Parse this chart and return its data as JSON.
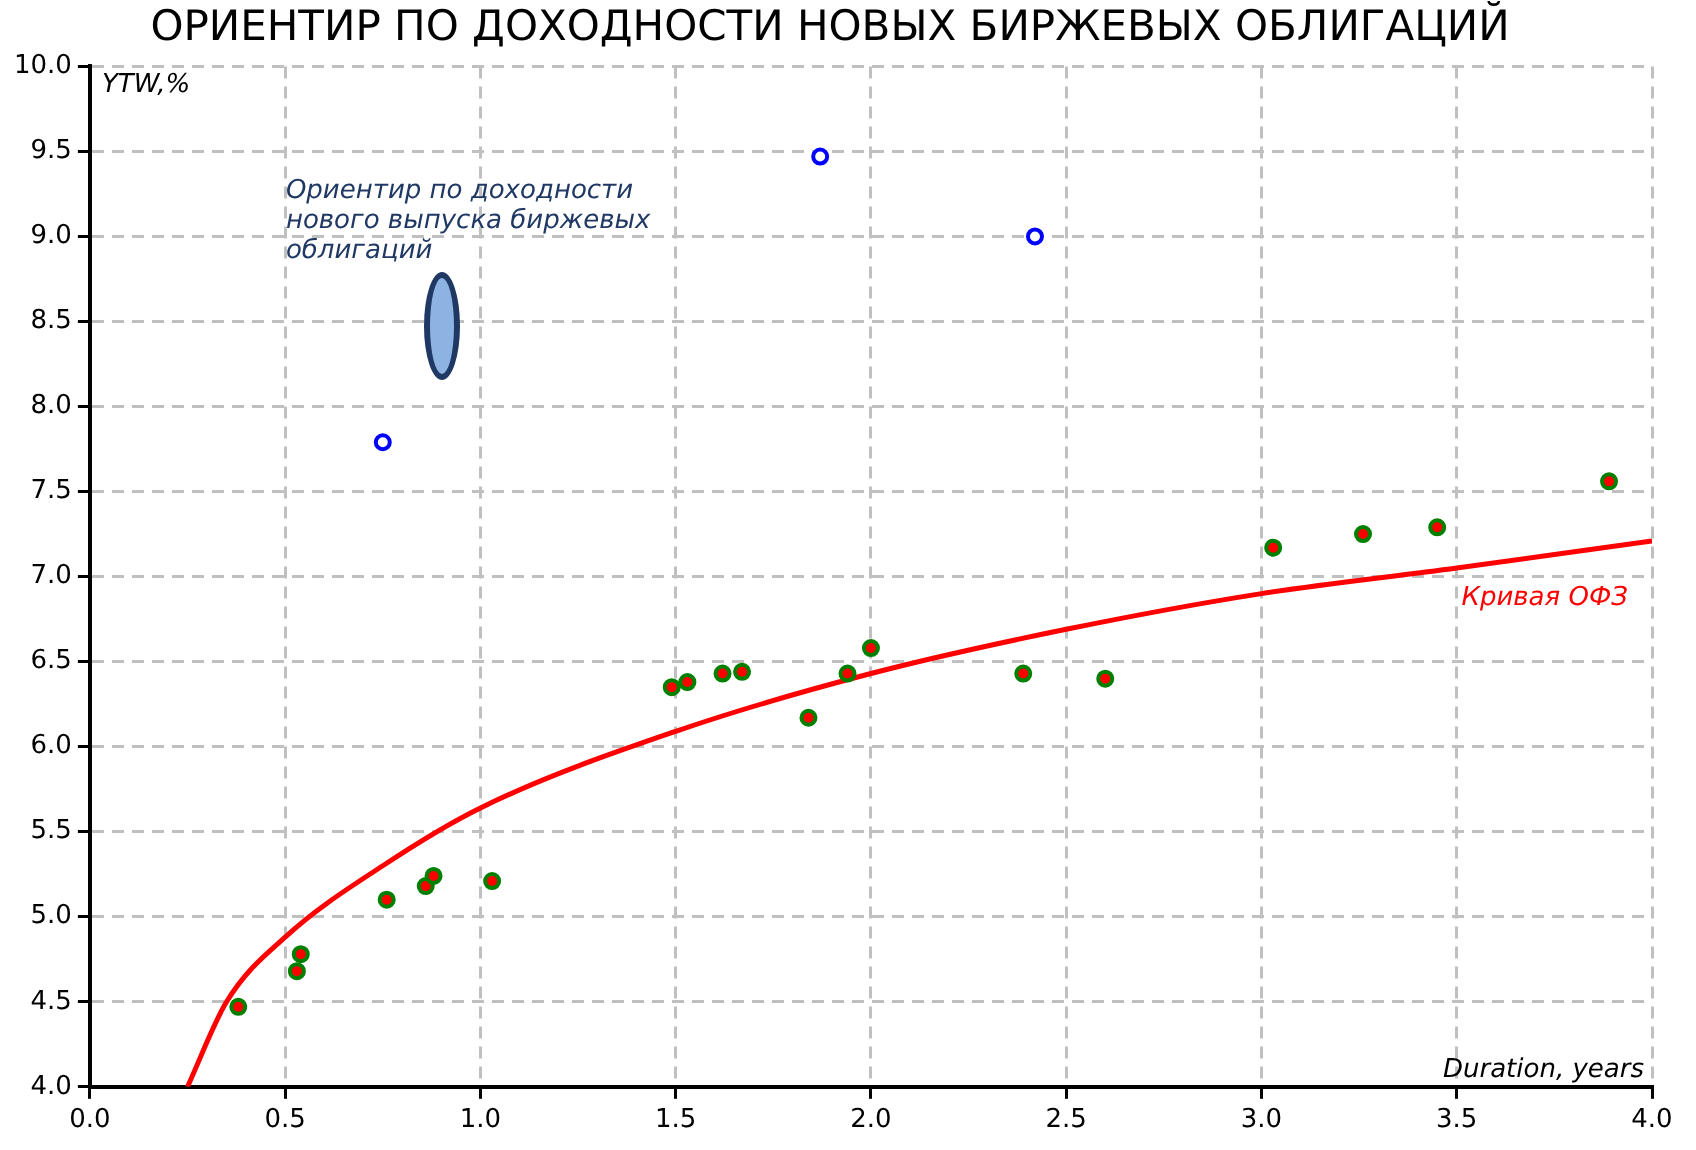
{
  "chart_data": {
    "type": "scatter",
    "title": "ОРИЕНТИР ПО ДОХОДНОСТИ НОВЫХ БИРЖЕВЫХ ОБЛИГАЦИЙ",
    "xlabel": "Duration, years",
    "ylabel": "YTW,%",
    "xlim": [
      0,
      4
    ],
    "ylim": [
      4,
      10
    ],
    "xticks": [
      {
        "value": 0,
        "label": "0.0"
      },
      {
        "value": 0.5,
        "label": "0.5"
      },
      {
        "value": 1,
        "label": "1.0"
      },
      {
        "value": 1.5,
        "label": "1.5"
      },
      {
        "value": 2,
        "label": "2.0"
      },
      {
        "value": 2.5,
        "label": "2.5"
      },
      {
        "value": 3,
        "label": "3.0"
      },
      {
        "value": 3.5,
        "label": "3.5"
      },
      {
        "value": 4,
        "label": "4.0"
      }
    ],
    "yticks": [
      {
        "value": 4,
        "label": "4.0"
      },
      {
        "value": 4.5,
        "label": "4.5"
      },
      {
        "value": 5,
        "label": "5.0"
      },
      {
        "value": 5.5,
        "label": "5.5"
      },
      {
        "value": 6,
        "label": "6.0"
      },
      {
        "value": 6.5,
        "label": "6.5"
      },
      {
        "value": 7,
        "label": "7.0"
      },
      {
        "value": 7.5,
        "label": "7.5"
      },
      {
        "value": 8,
        "label": "8.0"
      },
      {
        "value": 8.5,
        "label": "8.5"
      },
      {
        "value": 9,
        "label": "9.0"
      },
      {
        "value": 9.5,
        "label": "9.5"
      },
      {
        "value": 10,
        "label": "10.0"
      }
    ],
    "grid": true,
    "legend": false,
    "series": [
      {
        "type": "line",
        "name": "Кривая ОФЗ",
        "color": "#ff0000",
        "marker": "none",
        "x": [
          0.25,
          0.35,
          0.5,
          0.75,
          1.0,
          1.5,
          2.0,
          2.5,
          3.0,
          3.5,
          4.0
        ],
        "values": [
          4.0,
          4.5,
          4.88,
          5.3,
          5.64,
          6.09,
          6.43,
          6.69,
          6.9,
          7.05,
          7.21
        ]
      },
      {
        "type": "scatter",
        "color": "#008000",
        "marker": "circle",
        "x": [
          0.38,
          0.53,
          0.54,
          0.76,
          0.86,
          0.88,
          1.03,
          1.49,
          1.53,
          1.62,
          1.67,
          1.84,
          1.94,
          2.0,
          2.39,
          2.6,
          3.03,
          3.26,
          3.45,
          3.89
        ],
        "values": [
          4.47,
          4.68,
          4.78,
          5.1,
          5.18,
          5.24,
          5.21,
          6.35,
          6.38,
          6.43,
          6.44,
          6.17,
          6.43,
          6.58,
          6.43,
          6.4,
          7.17,
          7.25,
          7.29,
          7.56
        ]
      },
      {
        "type": "scatter",
        "color": "#0000ff",
        "marker": "circle",
        "x": [
          0.75,
          1.87,
          2.42
        ],
        "values": [
          7.79,
          9.47,
          9.0
        ]
      }
    ],
    "annotations": [
      "Ориентир по доходности нового выпуска биржевых облигаций"
    ]
  }
}
